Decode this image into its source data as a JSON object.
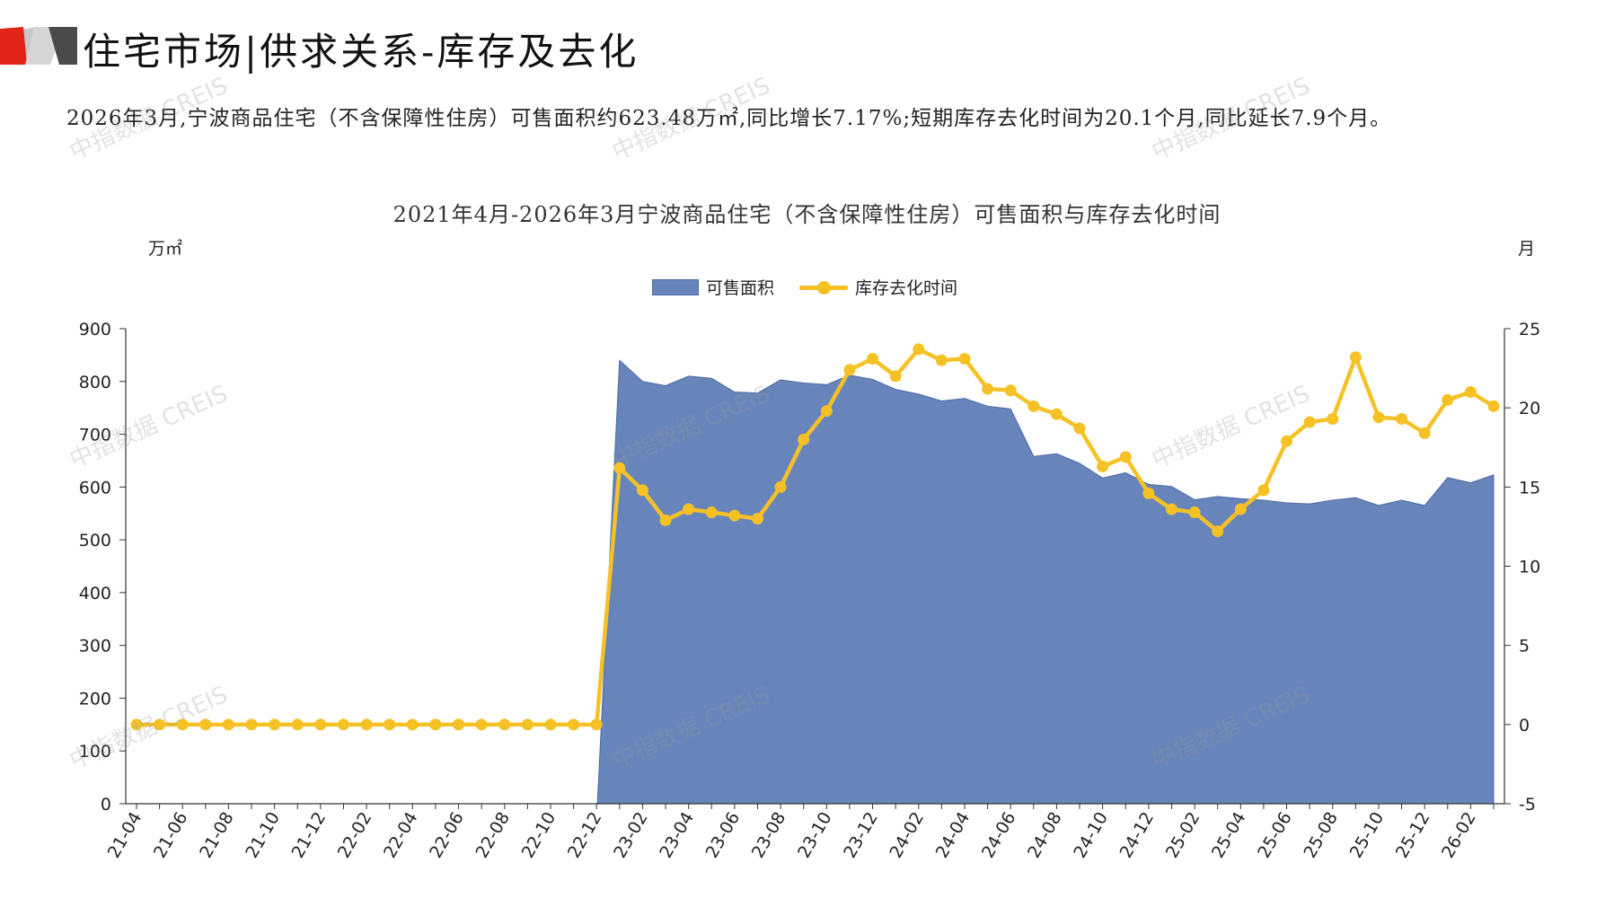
{
  "header": {
    "title": "住宅市场|供求关系-库存及去化",
    "summary": "2026年3月,宁波商品住宅（不含保障性住房）可售面积约623.48万㎡,同比增长7.17%;短期库存去化时间为20.1个月,同比延长7.9个月。"
  },
  "watermark": "中指数据 CREIS",
  "colors": {
    "area": "#6785bb",
    "area_edge": "#4c6aa3",
    "line": "#f5c125",
    "axis": "#333333"
  },
  "chart_data": {
    "type": "area+line",
    "title": "2021年4月-2026年3月宁波商品住宅（不含保障性住房）可售面积与库存去化时间",
    "left_unit": "万㎡",
    "right_unit": "月",
    "legend": [
      "可售面积",
      "库存去化时间"
    ],
    "legend_position": "top-center",
    "grid": false,
    "y_left": {
      "min": 0,
      "max": 900,
      "ticks": [
        0,
        100,
        200,
        300,
        400,
        500,
        600,
        700,
        800,
        900
      ]
    },
    "y_right": {
      "min": -5,
      "max": 25,
      "ticks": [
        -5,
        0,
        5,
        10,
        15,
        20,
        25
      ]
    },
    "x": [
      "21-04",
      "21-05",
      "21-06",
      "21-07",
      "21-08",
      "21-09",
      "21-10",
      "21-11",
      "21-12",
      "22-01",
      "22-02",
      "22-03",
      "22-04",
      "22-05",
      "22-06",
      "22-07",
      "22-08",
      "22-09",
      "22-10",
      "22-11",
      "22-12",
      "23-01",
      "23-02",
      "23-03",
      "23-04",
      "23-05",
      "23-06",
      "23-07",
      "23-08",
      "23-09",
      "23-10",
      "23-11",
      "23-12",
      "24-01",
      "24-02",
      "24-03",
      "24-04",
      "24-05",
      "24-06",
      "24-07",
      "24-08",
      "24-09",
      "24-10",
      "24-11",
      "24-12",
      "25-01",
      "25-02",
      "25-03",
      "25-04",
      "25-05",
      "25-06",
      "25-07",
      "25-08",
      "25-09",
      "25-10",
      "25-11",
      "25-12",
      "26-01",
      "26-02",
      "26-03"
    ],
    "x_tick_labels": [
      "21-04",
      "21-06",
      "21-08",
      "21-10",
      "21-12",
      "22-02",
      "22-04",
      "22-06",
      "22-08",
      "22-10",
      "22-12",
      "23-02",
      "23-04",
      "23-06",
      "23-08",
      "23-10",
      "23-12",
      "24-02",
      "24-04",
      "24-06",
      "24-08",
      "24-10",
      "24-12",
      "25-02",
      "25-04",
      "25-06",
      "25-08",
      "25-10",
      "25-12",
      "26-02"
    ],
    "series": [
      {
        "name": "可售面积",
        "type": "area",
        "axis": "left",
        "values": [
          0,
          0,
          0,
          0,
          0,
          0,
          0,
          0,
          0,
          0,
          0,
          0,
          0,
          0,
          0,
          0,
          0,
          0,
          0,
          0,
          0,
          840,
          800,
          792,
          810,
          806,
          780,
          778,
          803,
          797,
          794,
          812,
          804,
          785,
          776,
          763,
          768,
          753,
          748,
          658,
          663,
          645,
          617,
          627,
          605,
          601,
          576,
          582,
          578,
          575,
          570,
          568,
          575,
          580,
          565,
          575,
          565,
          618,
          608,
          623
        ]
      },
      {
        "name": "库存去化时间",
        "type": "line",
        "axis": "right",
        "values": [
          0,
          0,
          0,
          0,
          0,
          0,
          0,
          0,
          0,
          0,
          0,
          0,
          0,
          0,
          0,
          0,
          0,
          0,
          0,
          0,
          0,
          16.2,
          14.8,
          12.9,
          13.6,
          13.4,
          13.2,
          13.0,
          15.0,
          18.0,
          19.8,
          22.4,
          23.1,
          22.0,
          23.7,
          23.0,
          23.1,
          21.2,
          21.1,
          20.1,
          19.6,
          18.7,
          16.3,
          16.9,
          14.6,
          13.6,
          13.4,
          12.2,
          13.6,
          14.8,
          17.9,
          19.1,
          19.3,
          23.2,
          19.4,
          19.3,
          18.4,
          20.5,
          21.0,
          20.1
        ]
      }
    ]
  }
}
